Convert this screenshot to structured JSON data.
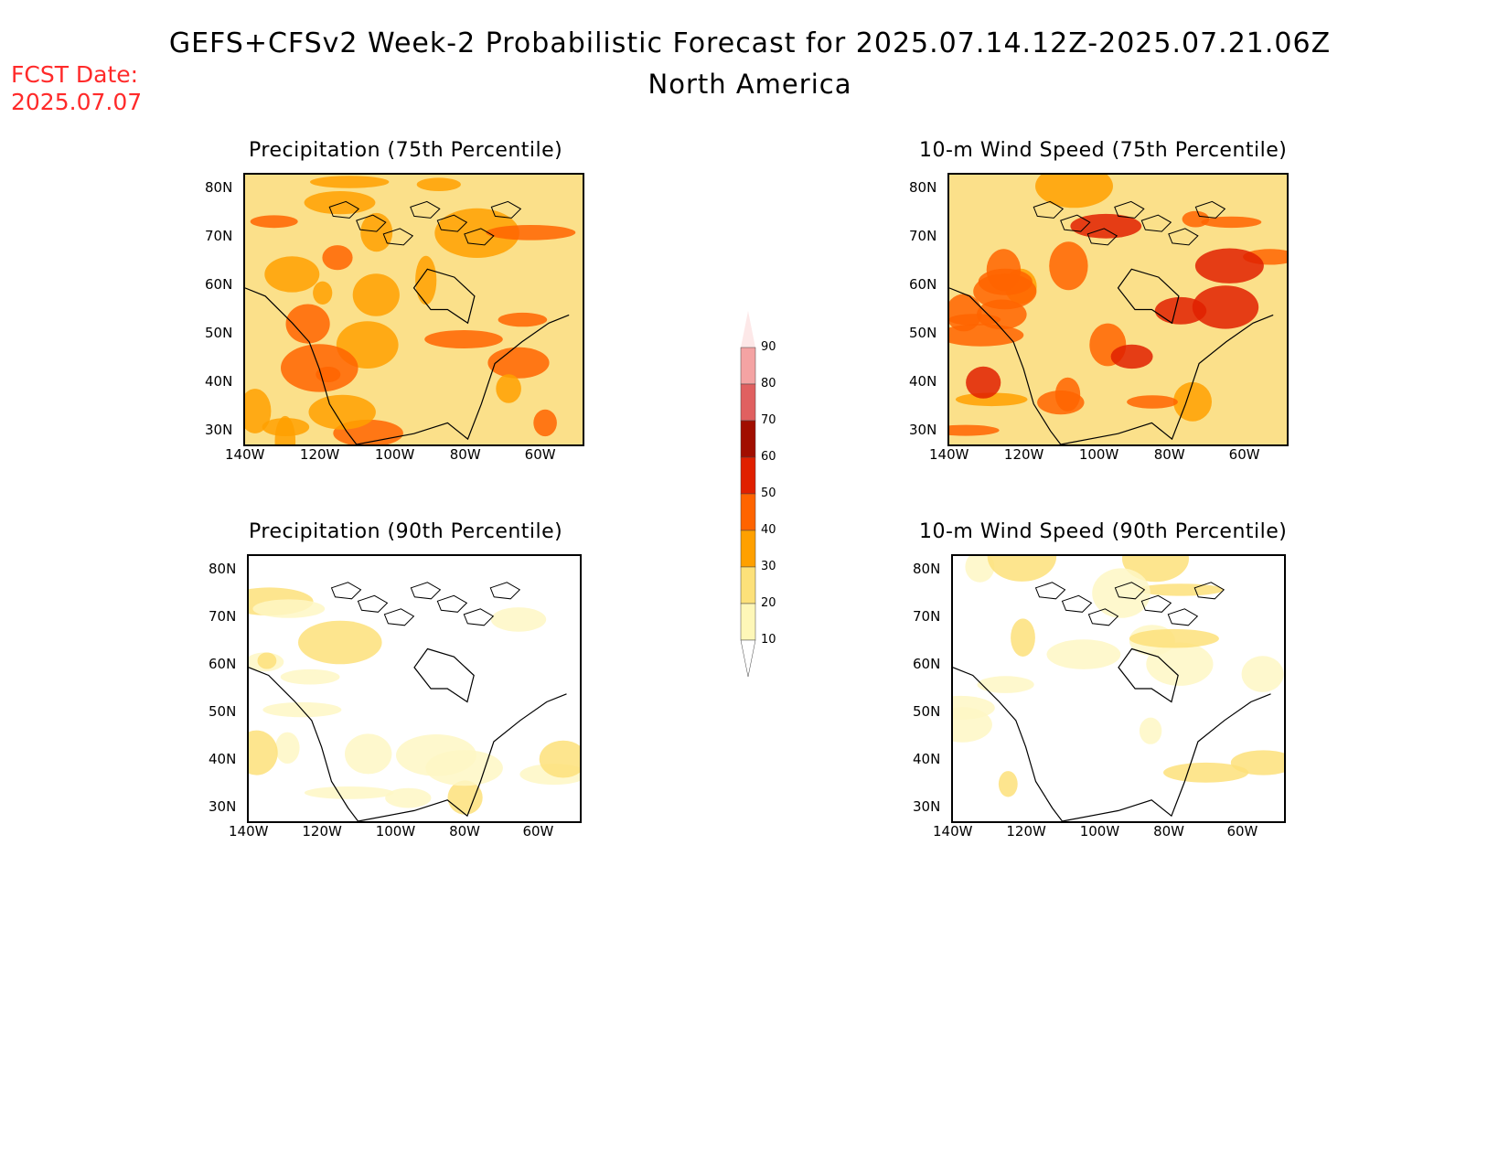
{
  "header": {
    "title": "GEFS+CFSv2 Week-2 Probabilistic Forecast for 2025.07.14.12Z-2025.07.21.06Z",
    "subtitle": "North America",
    "fcst_label": "FCST Date:",
    "fcst_date": "2025.07.07"
  },
  "axes": {
    "lat_labels": [
      "80N",
      "70N",
      "60N",
      "50N",
      "40N",
      "30N"
    ],
    "lon_labels": [
      "140W",
      "120W",
      "100W",
      "80W",
      "60W"
    ]
  },
  "panels": [
    {
      "id": "precip75",
      "title": "Precipitation (75th Percentile)",
      "intensity": "high",
      "fill": "#fbe08a"
    },
    {
      "id": "wind75",
      "title": "10-m Wind Speed (75th Percentile)",
      "intensity": "high",
      "fill": "#fbe08a"
    },
    {
      "id": "precip90",
      "title": "Precipitation (90th Percentile)",
      "intensity": "low",
      "fill": "#fef7c4"
    },
    {
      "id": "wind90",
      "title": "10-m Wind Speed (90th Percentile)",
      "intensity": "low",
      "fill": "#fef7c4"
    }
  ],
  "colorbar": {
    "levels": [
      "90",
      "80",
      "70",
      "60",
      "50",
      "40",
      "30",
      "20",
      "10"
    ],
    "colors": [
      "#fde8e8",
      "#f4a3a3",
      "#e06060",
      "#a10e00",
      "#e02000",
      "#ff6400",
      "#ffa000",
      "#fde17a",
      "#fef7b8"
    ]
  }
}
